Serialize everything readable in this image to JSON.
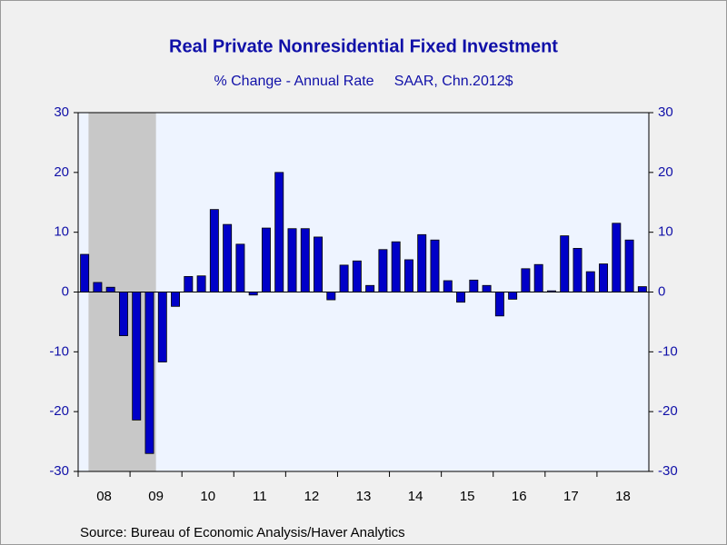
{
  "chart_data": {
    "type": "bar",
    "title": "Real Private Nonresidential Fixed Investment",
    "subtitle": "% Change - Annual Rate     SAAR, Chn.2012$",
    "source": "Source:  Bureau of Economic Analysis/Haver Analytics",
    "x": [
      2008.125,
      2008.375,
      2008.625,
      2008.875,
      2009.125,
      2009.375,
      2009.625,
      2009.875,
      2010.125,
      2010.375,
      2010.625,
      2010.875,
      2011.125,
      2011.375,
      2011.625,
      2011.875,
      2012.125,
      2012.375,
      2012.625,
      2012.875,
      2013.125,
      2013.375,
      2013.625,
      2013.875,
      2014.125,
      2014.375,
      2014.625,
      2014.875,
      2015.125,
      2015.375,
      2015.625,
      2015.875,
      2016.125,
      2016.375,
      2016.625,
      2016.875,
      2017.125,
      2017.375,
      2017.625,
      2017.875,
      2018.125,
      2018.375,
      2018.625,
      2018.875
    ],
    "values": [
      6.3,
      1.6,
      0.8,
      -7.3,
      -21.4,
      -27.0,
      -11.7,
      -2.4,
      2.6,
      2.7,
      13.8,
      11.3,
      8.0,
      -0.5,
      10.7,
      20.0,
      10.6,
      10.6,
      9.2,
      -1.3,
      4.5,
      5.2,
      1.1,
      7.1,
      8.4,
      5.4,
      9.6,
      8.7,
      1.9,
      -1.7,
      2.0,
      1.1,
      -4.0,
      -1.2,
      3.9,
      4.6,
      0.2,
      9.4,
      7.3,
      3.4,
      4.7,
      11.5,
      8.7,
      0.9
    ],
    "color": "#0000c8",
    "xlim": [
      2008,
      2019
    ],
    "xticks": [
      {
        "value": 2008.5,
        "label": "08"
      },
      {
        "value": 2009.5,
        "label": "09"
      },
      {
        "value": 2010.5,
        "label": "10"
      },
      {
        "value": 2011.5,
        "label": "11"
      },
      {
        "value": 2012.5,
        "label": "12"
      },
      {
        "value": 2013.5,
        "label": "13"
      },
      {
        "value": 2014.5,
        "label": "14"
      },
      {
        "value": 2015.5,
        "label": "15"
      },
      {
        "value": 2016.5,
        "label": "16"
      },
      {
        "value": 2017.5,
        "label": "17"
      },
      {
        "value": 2018.5,
        "label": "18"
      }
    ],
    "ylim": [
      -30,
      30
    ],
    "yticks": [
      -30,
      -20,
      -10,
      0,
      10,
      20,
      30
    ],
    "y2lim": [
      -30,
      30
    ],
    "y2ticks": [
      -30,
      -20,
      -10,
      0,
      10,
      20,
      30
    ],
    "recession": [
      2008.2,
      2009.5
    ]
  }
}
